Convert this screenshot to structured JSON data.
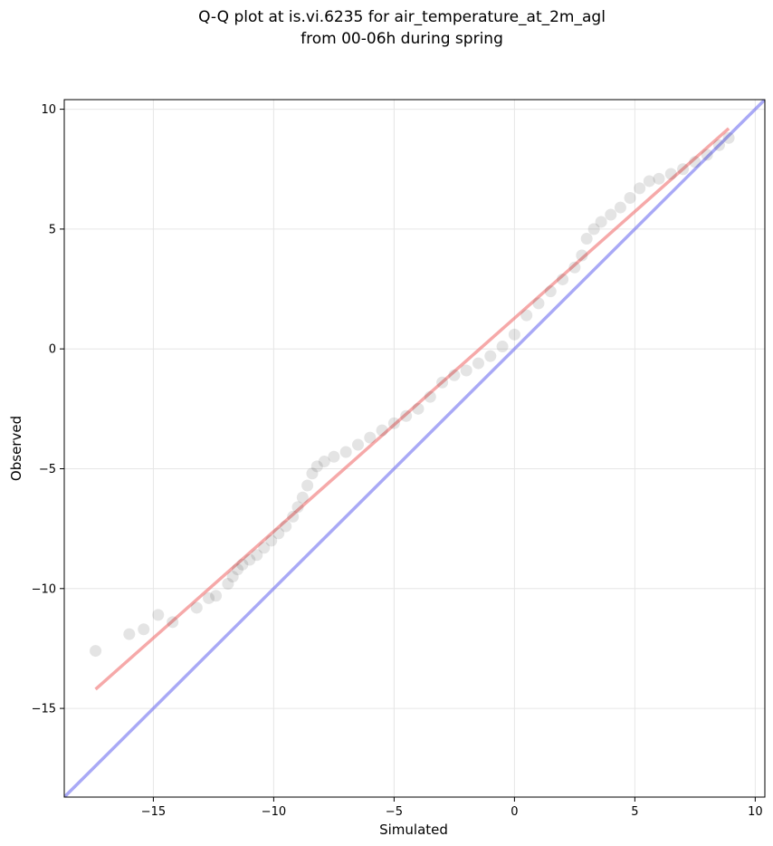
{
  "chart_data": {
    "type": "scatter",
    "title": "Q-Q plot at is.vi.6235 for air_temperature_at_2m_agl\nfrom 00-06h during spring",
    "title_lines": [
      "Q-Q plot at is.vi.6235 for air_temperature_at_2m_agl",
      "from 00-06h during spring"
    ],
    "xlabel": "Simulated",
    "ylabel": "Observed",
    "xlim": [
      -18.7,
      10.4
    ],
    "ylim": [
      -18.7,
      10.4
    ],
    "xticks": [
      -15,
      -10,
      -5,
      0,
      5,
      10
    ],
    "yticks": [
      -15,
      -10,
      -5,
      0,
      5,
      10
    ],
    "xtick_labels": [
      "−15",
      "−10",
      "−5",
      "0",
      "5",
      "10"
    ],
    "ytick_labels": [
      "−15",
      "−10",
      "−5",
      "0",
      "5",
      "10"
    ],
    "grid": true,
    "colors": {
      "points": "#222222",
      "fit_line": "#f07070",
      "identity_line": "#7070f0",
      "grid": "#e6e6e6",
      "axes": "#000000"
    },
    "series": [
      {
        "kind": "points",
        "x": [
          -17.4,
          -16.0,
          -15.4,
          -14.8,
          -14.2,
          -13.2,
          -12.7,
          -12.4,
          -11.9,
          -11.7,
          -11.5,
          -11.3,
          -11.0,
          -10.7,
          -10.4,
          -10.1,
          -9.8,
          -9.5,
          -9.2,
          -9.0,
          -8.8,
          -8.6,
          -8.4,
          -8.2,
          -7.9,
          -7.5,
          -7.0,
          -6.5,
          -6.0,
          -5.5,
          -5.0,
          -4.5,
          -4.0,
          -3.5,
          -3.0,
          -2.5,
          -2.0,
          -1.5,
          -1.0,
          -0.5,
          0.0,
          0.5,
          1.0,
          1.5,
          2.0,
          2.5,
          2.8,
          3.0,
          3.3,
          3.6,
          4.0,
          4.4,
          4.8,
          5.2,
          5.6,
          6.0,
          6.5,
          7.0,
          7.5,
          8.0,
          8.5,
          8.9
        ],
        "y": [
          -12.6,
          -11.9,
          -11.7,
          -11.1,
          -11.4,
          -10.8,
          -10.4,
          -10.3,
          -9.8,
          -9.5,
          -9.2,
          -9.0,
          -8.8,
          -8.6,
          -8.3,
          -8.0,
          -7.7,
          -7.4,
          -7.0,
          -6.6,
          -6.2,
          -5.7,
          -5.2,
          -4.9,
          -4.7,
          -4.5,
          -4.3,
          -4.0,
          -3.7,
          -3.4,
          -3.1,
          -2.8,
          -2.5,
          -2.0,
          -1.4,
          -1.1,
          -0.9,
          -0.6,
          -0.3,
          0.1,
          0.6,
          1.4,
          1.9,
          2.4,
          2.9,
          3.4,
          3.9,
          4.6,
          5.0,
          5.3,
          5.6,
          5.9,
          6.3,
          6.7,
          7.0,
          7.1,
          7.3,
          7.5,
          7.8,
          8.1,
          8.5,
          8.8
        ]
      },
      {
        "kind": "fit-line",
        "x": [
          -17.4,
          8.9
        ],
        "y": [
          -14.2,
          9.2
        ]
      },
      {
        "kind": "identity-line",
        "x": [
          -18.7,
          10.4
        ],
        "y": [
          -18.7,
          10.4
        ]
      }
    ]
  }
}
